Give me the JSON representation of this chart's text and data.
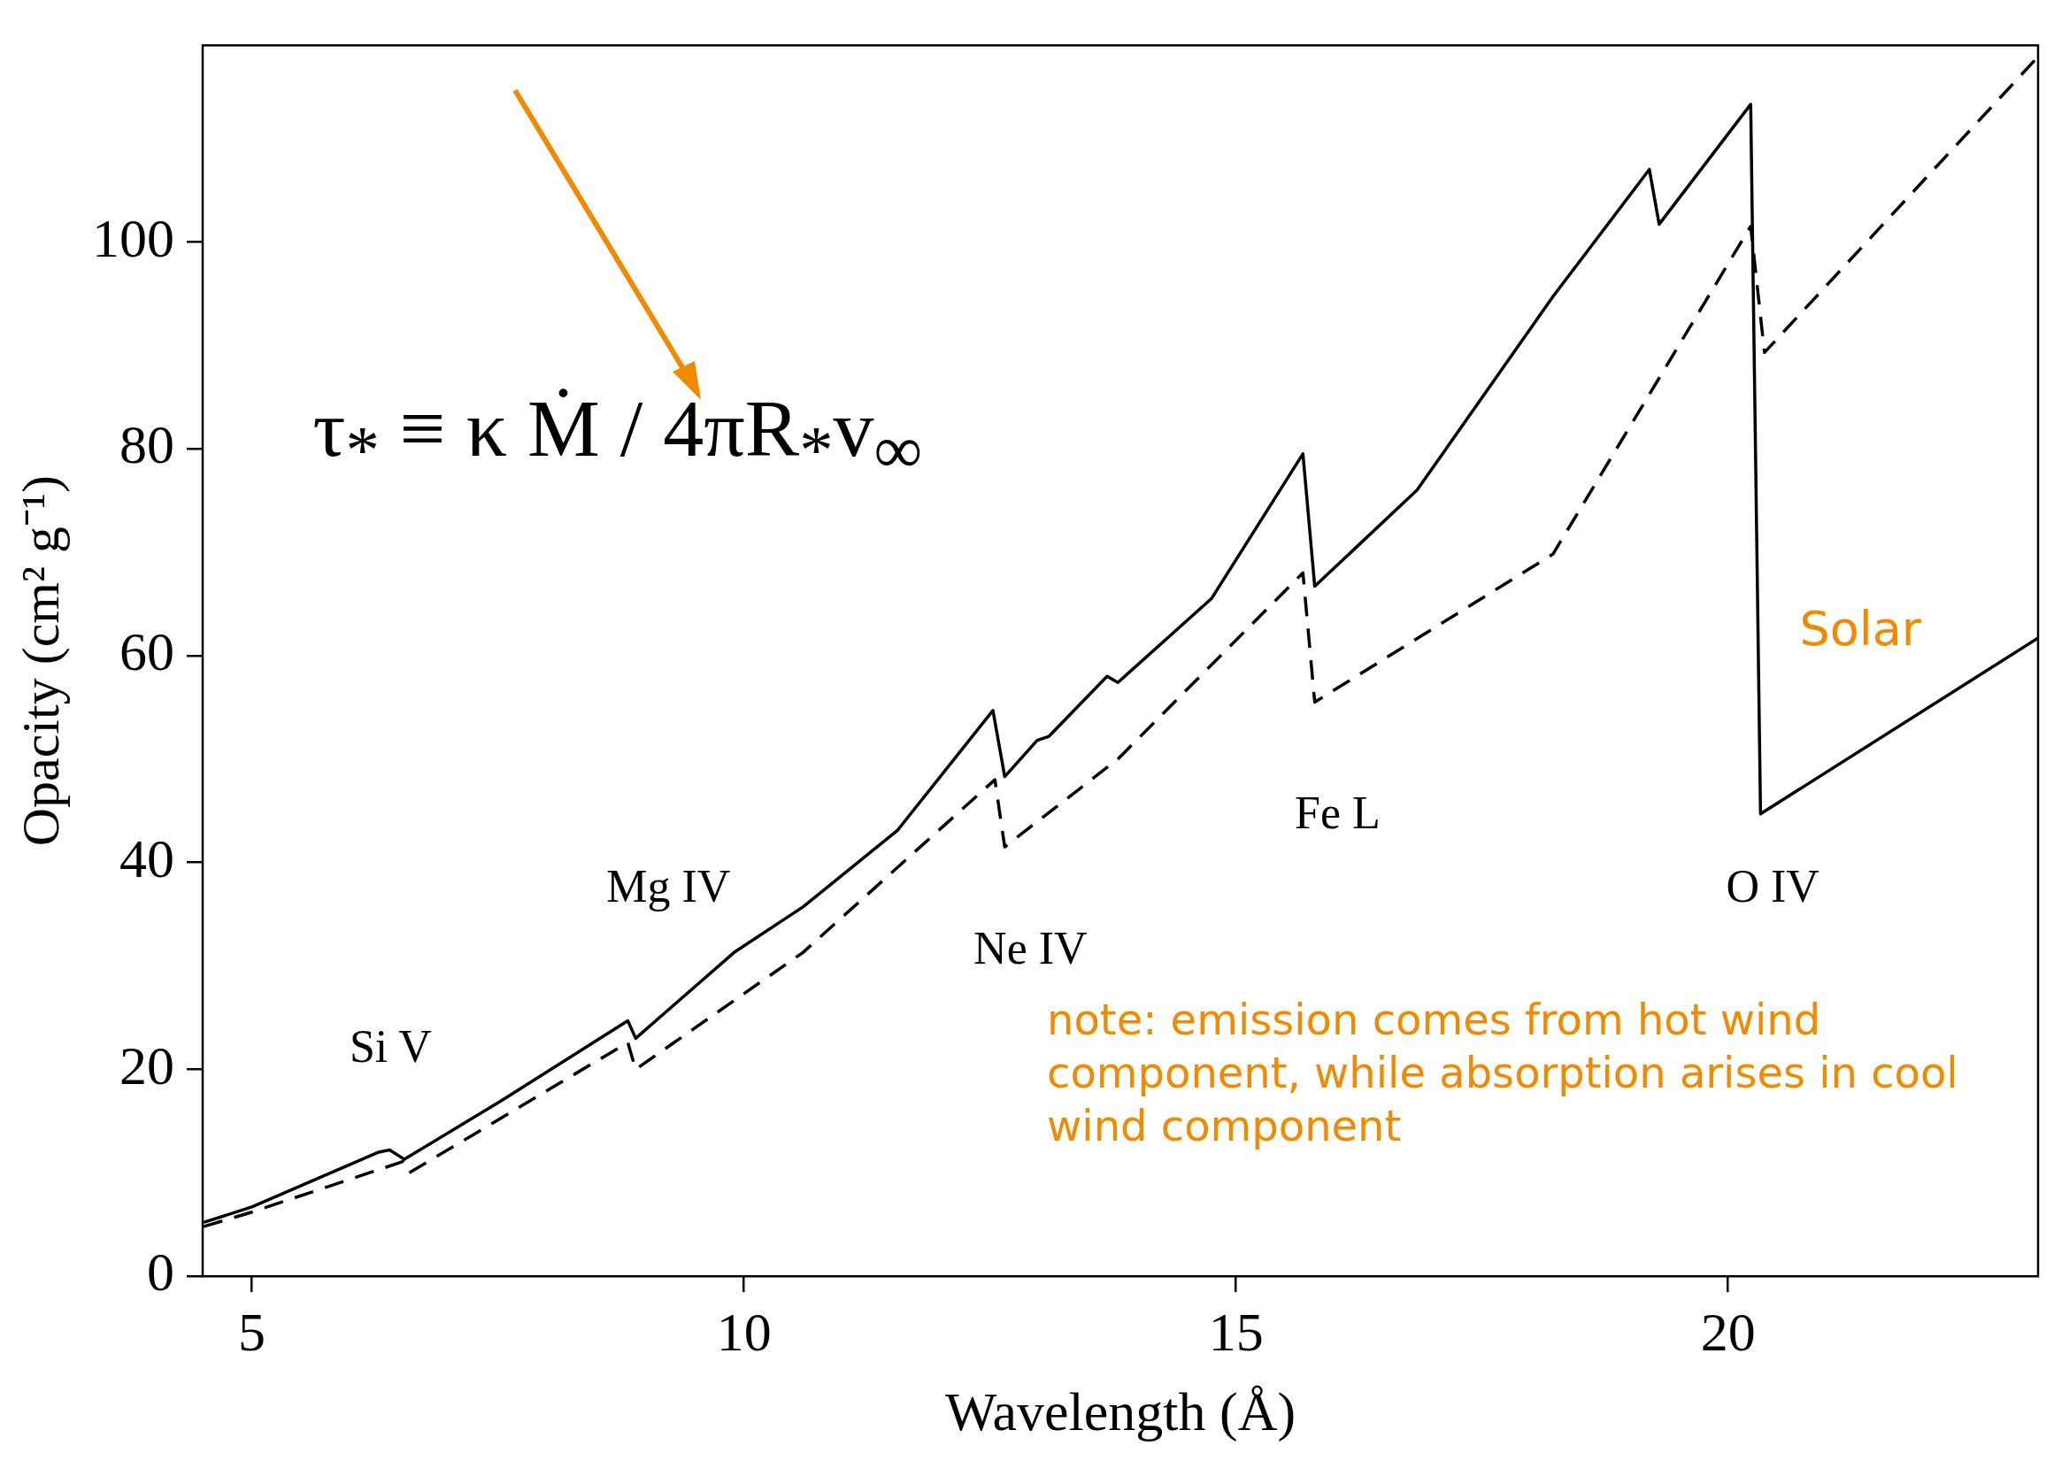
{
  "chart_data": {
    "type": "line",
    "xlabel": "Wavelength (Å)",
    "ylabel": "Opacity (cm² g⁻¹)",
    "xlim": [
      4.5,
      23.15
    ],
    "ylim": [
      0,
      119
    ],
    "xticks": [
      5,
      10,
      15,
      20
    ],
    "yticks": [
      0,
      20,
      40,
      60,
      80,
      100
    ],
    "grid": false,
    "legend": false,
    "marker": "none",
    "series": [
      {
        "color": "#000000",
        "line_style": "solid",
        "x": [
          4.51,
          5,
          6.29,
          6.4,
          6.55,
          7.54,
          8.82,
          8.9,
          9.9,
          10.6,
          11.56,
          12.53,
          12.65,
          12.98,
          13.1,
          13.69,
          13.8,
          14.75,
          15.68,
          15.8,
          16.84,
          18.22,
          19.2,
          19.3,
          20.23,
          20.33,
          23.15
        ],
        "values": [
          5.2,
          6.7,
          12,
          12.2,
          11.3,
          17,
          24.7,
          23,
          31.3,
          35.7,
          43.1,
          54.7,
          48.3,
          51.8,
          52.2,
          58,
          57.4,
          65.5,
          79.5,
          66.7,
          76,
          94.7,
          107,
          101.7,
          113.3,
          44.7,
          61.7
        ]
      },
      {
        "color": "#000000",
        "line_style": "dashed",
        "x": [
          4.51,
          5,
          6.54,
          6.6,
          8.82,
          8.9,
          10.6,
          12.55,
          12.65,
          13.8,
          15.68,
          15.8,
          18.22,
          20.23,
          20.37,
          23.15
        ],
        "values": [
          4.8,
          6.2,
          11.1,
          10,
          22.6,
          20,
          31.3,
          48,
          41.5,
          50,
          68,
          55.5,
          69.8,
          101.5,
          89.3,
          117.9
        ]
      }
    ],
    "annotations": [
      "Si V",
      "Mg IV",
      "Ne IV",
      "Fe L",
      "O IV",
      "τ$_{*}$ ≡ κ Ṁ / 4πR$_{*}$v$_{∞}$",
      "Solar",
      "note: emission comes from hot wind component, while absorption arises in cool wind component"
    ]
  }
}
